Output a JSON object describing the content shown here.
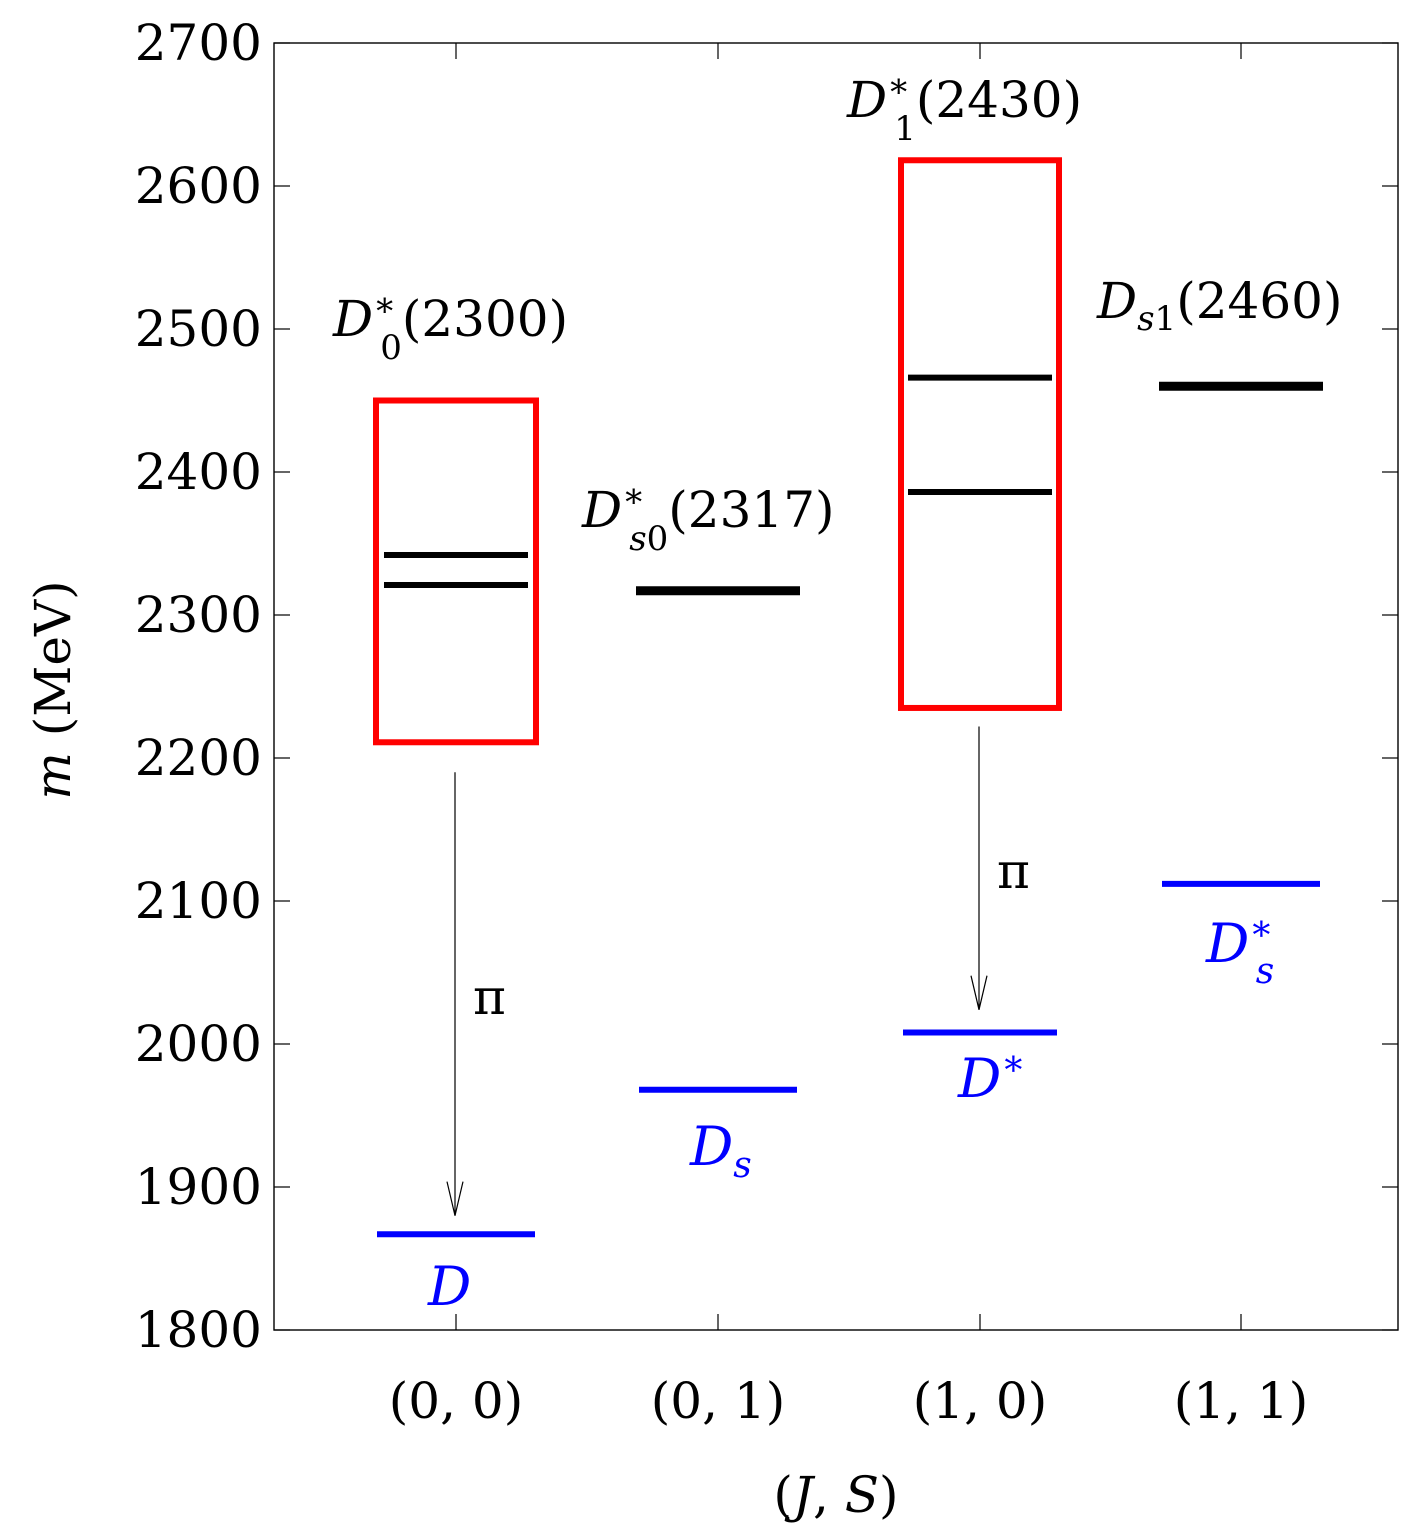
{
  "chart_data": {
    "type": "level-diagram",
    "title": "",
    "xlabel": "(J, S)",
    "ylabel": "m (MeV)",
    "ylim": [
      1800,
      2700
    ],
    "yticks": [
      "1800",
      "1900",
      "2000",
      "2100",
      "2200",
      "2300",
      "2400",
      "2500",
      "2600",
      "2700"
    ],
    "categories": [
      "(0, 0)",
      "(0, 1)",
      "(1, 0)",
      "(1, 1)"
    ],
    "colors": {
      "resonance": "#000000",
      "threshold": "#0000ff",
      "band": "#ff0000",
      "axis": "#000000"
    },
    "bands": [
      {
        "category": 0,
        "ymin": 2211,
        "ymax": 2450
      },
      {
        "category": 2,
        "ymin": 2235,
        "ymax": 2618
      }
    ],
    "resonances": [
      {
        "category": 0,
        "values": [
          2321,
          2342
        ]
      },
      {
        "category": 1,
        "values": [
          2317
        ]
      },
      {
        "category": 2,
        "values": [
          2386,
          2466
        ]
      },
      {
        "category": 3,
        "values": [
          2460
        ]
      }
    ],
    "thresholds": [
      {
        "category": 0,
        "value": 1867,
        "label": "D"
      },
      {
        "category": 1,
        "value": 1968,
        "label": "Ds"
      },
      {
        "category": 2,
        "value": 2008,
        "label": "D*"
      },
      {
        "category": 3,
        "value": 2112,
        "label": "Ds*"
      }
    ],
    "state_labels": [
      {
        "category": 0,
        "text": "D0*(2300)"
      },
      {
        "category": 1,
        "text": "Ds0*(2317)"
      },
      {
        "category": 2,
        "text": "D1*(2430)"
      },
      {
        "category": 3,
        "text": "Ds1(2460)"
      }
    ],
    "decays": [
      {
        "category": 0,
        "from": 2190,
        "to": 1880,
        "label": "π"
      },
      {
        "category": 2,
        "from": 2222,
        "to": 2024,
        "label": "π"
      }
    ]
  }
}
